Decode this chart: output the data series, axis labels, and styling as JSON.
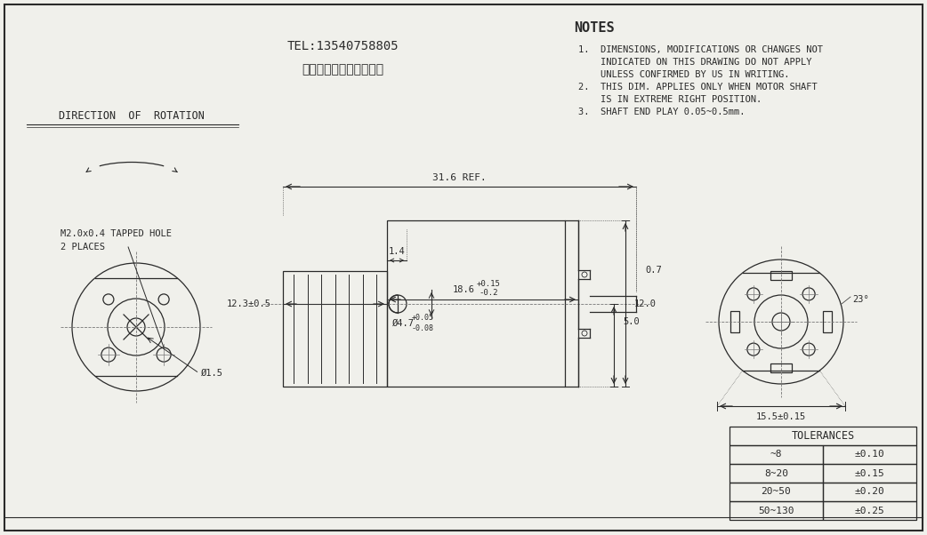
{
  "bg_color": "#f0f0eb",
  "line_color": "#2a2a2a",
  "font_family": "monospace",
  "title_phone": "TEL:13540758805",
  "title_company": "深圳市品成电机有限公司",
  "direction_label": "DIRECTION  OF  ROTATION",
  "tapped_hole_label1": "M2.0x0.4 TAPPED HOLE",
  "tapped_hole_label2": "2 PLACES",
  "dia_label": "Ø1.5",
  "notes_title": "NOTES",
  "note1a": "1.  DIMENSIONS, MODIFICATIONS OR CHANGES NOT",
  "note1b": "    INDICATED ON THIS DRAWING DO NOT APPLY",
  "note1c": "    UNLESS CONFIRMED BY US IN WRITING.",
  "note2a": "2.  THIS DIM. APPLIES ONLY WHEN MOTOR SHAFT",
  "note2b": "    IS IN EXTREME RIGHT POSITION.",
  "note3": "3.  SHAFT END PLAY 0.05~0.5mm.",
  "tol_title": "TOLERANCES",
  "tol_rows": [
    [
      "~8",
      "±0.10"
    ],
    [
      "8~20",
      "±0.15"
    ],
    [
      "20~50",
      "±0.20"
    ],
    [
      "50~130",
      "±0.25"
    ]
  ],
  "dim_316": "31.6 REF.",
  "dim_123": "12.3±0.5",
  "dim_186": "18.6",
  "dim_186_tol_hi": "+0.15",
  "dim_186_tol_lo": "-0.2",
  "dim_07": "0.7",
  "dim_14": "1.4",
  "dim_47": "Ø4.7",
  "dim_47_tol_hi": "+0.05",
  "dim_47_tol_lo": "-0.08",
  "dim_50": "5.0",
  "dim_120": "12.0",
  "dim_155": "15.5±0.15",
  "dim_23": "23°"
}
